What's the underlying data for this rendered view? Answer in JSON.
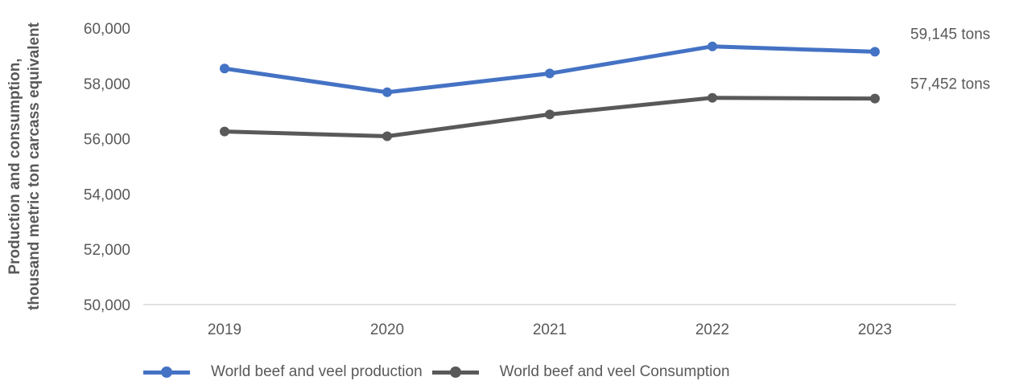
{
  "chart_data": {
    "type": "line",
    "title": "",
    "xlabel": "",
    "ylabel_lines": [
      "Production and consumption,",
      "thousand metric ton carcass equivalent"
    ],
    "categories": [
      "2019",
      "2020",
      "2021",
      "2022",
      "2023"
    ],
    "ylim": [
      50000,
      60000
    ],
    "yticks": [
      50000,
      52000,
      54000,
      56000,
      58000,
      60000
    ],
    "ytick_labels": [
      "50,000",
      "52,000",
      "54,000",
      "56,000",
      "58,000",
      "60,000"
    ],
    "grid": false,
    "legend_position": "bottom",
    "series": [
      {
        "name": "World beef and veel production",
        "color": "#4472c4",
        "values": [
          58540,
          57680,
          58360,
          59340,
          59145
        ],
        "end_label": "59,145 tons"
      },
      {
        "name": "World beef and veel Consumption",
        "color": "#595959",
        "values": [
          56260,
          56090,
          56880,
          57480,
          57452
        ],
        "end_label": "57,452 tons"
      }
    ]
  }
}
